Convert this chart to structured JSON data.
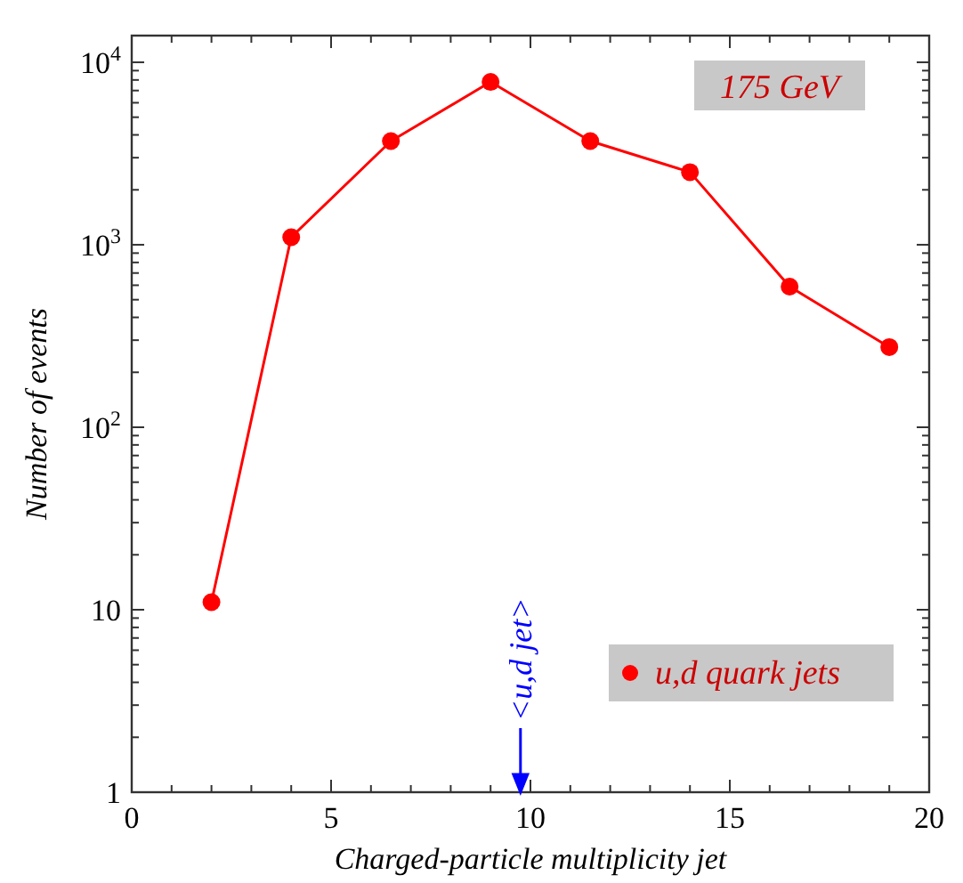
{
  "chart_data": {
    "type": "line",
    "xlabel": "Charged-particle multiplicity jet",
    "ylabel": "Number of events",
    "x": [
      2,
      4,
      6.5,
      9,
      11.5,
      14,
      16.5,
      19
    ],
    "series": [
      {
        "name": "u,d quark jets",
        "color": "#ff0000",
        "values": [
          11,
          1100,
          3700,
          7800,
          3700,
          2500,
          590,
          275
        ]
      }
    ],
    "log": "y",
    "marker": "circle",
    "line_style": "solid",
    "legend": "bottom right",
    "grid": false,
    "xlim": [
      0,
      20
    ],
    "ylim": [
      1,
      14000
    ],
    "xticks": [
      0,
      {
        "value": 1,
        "label": null
      },
      {
        "value": 2,
        "label": null
      },
      {
        "value": 3,
        "label": null
      },
      {
        "value": 4,
        "label": null
      },
      5,
      {
        "value": 6,
        "label": null
      },
      {
        "value": 7,
        "label": null
      },
      {
        "value": 8,
        "label": null
      },
      {
        "value": 9,
        "label": null
      },
      10,
      {
        "value": 11,
        "label": null
      },
      {
        "value": 12,
        "label": null
      },
      {
        "value": 13,
        "label": null
      },
      {
        "value": 14,
        "label": null
      },
      15,
      {
        "value": 16,
        "label": null
      },
      {
        "value": 17,
        "label": null
      },
      {
        "value": 18,
        "label": null
      },
      {
        "value": 19,
        "label": null
      },
      20
    ],
    "yticks": [
      1,
      {
        "value": 2,
        "label": null
      },
      {
        "value": 3,
        "label": null
      },
      {
        "value": 4,
        "label": null
      },
      {
        "value": 5,
        "label": null
      },
      {
        "value": 6,
        "label": null
      },
      {
        "value": 7,
        "label": null
      },
      {
        "value": 8,
        "label": null
      },
      {
        "value": 9,
        "label": null
      },
      10,
      {
        "value": 20,
        "label": null
      },
      {
        "value": 30,
        "label": null
      },
      {
        "value": 40,
        "label": null
      },
      {
        "value": 50,
        "label": null
      },
      {
        "value": 60,
        "label": null
      },
      {
        "value": 70,
        "label": null
      },
      {
        "value": 80,
        "label": null
      },
      {
        "value": 90,
        "label": null
      },
      {
        "value": 100,
        "label": "10$^{2}$"
      },
      {
        "value": 200,
        "label": null
      },
      {
        "value": 300,
        "label": null
      },
      {
        "value": 400,
        "label": null
      },
      {
        "value": 500,
        "label": null
      },
      {
        "value": 600,
        "label": null
      },
      {
        "value": 700,
        "label": null
      },
      {
        "value": 800,
        "label": null
      },
      {
        "value": 900,
        "label": null
      },
      {
        "value": 1000,
        "label": "10$^{3}$"
      },
      {
        "value": 2000,
        "label": null
      },
      {
        "value": 3000,
        "label": null
      },
      {
        "value": 4000,
        "label": null
      },
      {
        "value": 5000,
        "label": null
      },
      {
        "value": 6000,
        "label": null
      },
      {
        "value": 7000,
        "label": null
      },
      {
        "value": 8000,
        "label": null
      },
      {
        "value": 9000,
        "label": null
      },
      {
        "value": 10000,
        "label": "10$^{4}$"
      }
    ],
    "ref_lines": [
      {
        "axis": "x",
        "value": 9.75,
        "label": "<u,d jet>",
        "color": "#0000ff"
      }
    ],
    "annotations": [
      "175 GeV"
    ]
  }
}
